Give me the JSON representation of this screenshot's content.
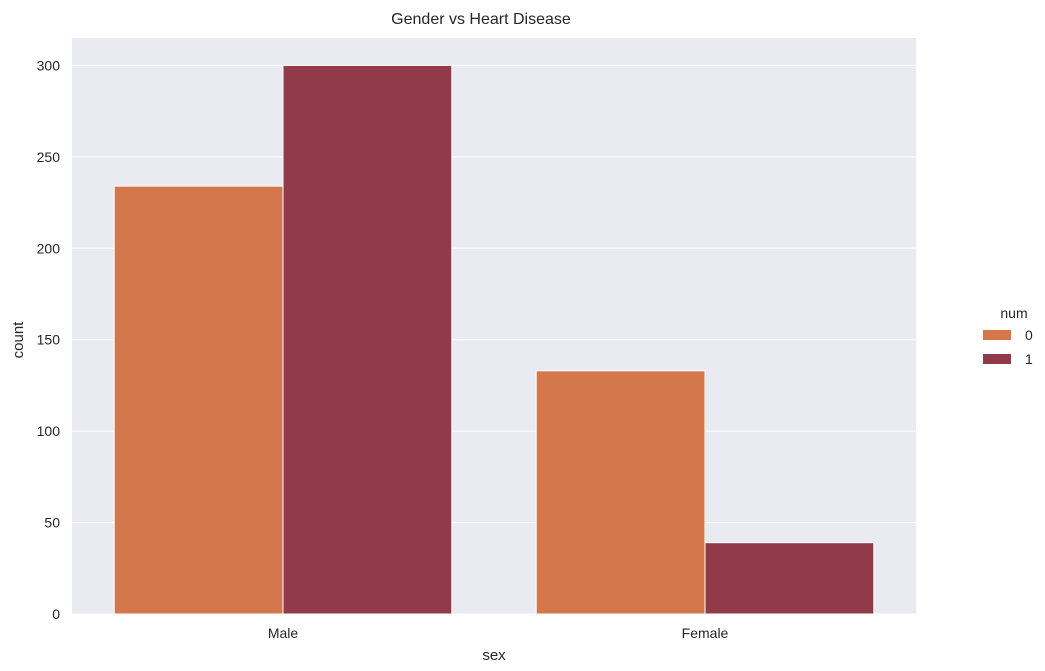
{
  "chart_data": {
    "type": "bar",
    "title": "Gender vs Heart Disease",
    "xlabel": "sex",
    "ylabel": "count",
    "categories": [
      "Male",
      "Female"
    ],
    "series": [
      {
        "name": "0",
        "values": [
          234,
          133
        ],
        "color": "#d4774b"
      },
      {
        "name": "1",
        "values": [
          300,
          39
        ],
        "color": "#913a4a"
      }
    ],
    "ylim": [
      0,
      315
    ],
    "yticks": [
      0,
      50,
      100,
      150,
      200,
      250,
      300
    ],
    "legend_title": "num",
    "legend_position": "right",
    "grid": true,
    "background_color": "#eaeaf2"
  }
}
